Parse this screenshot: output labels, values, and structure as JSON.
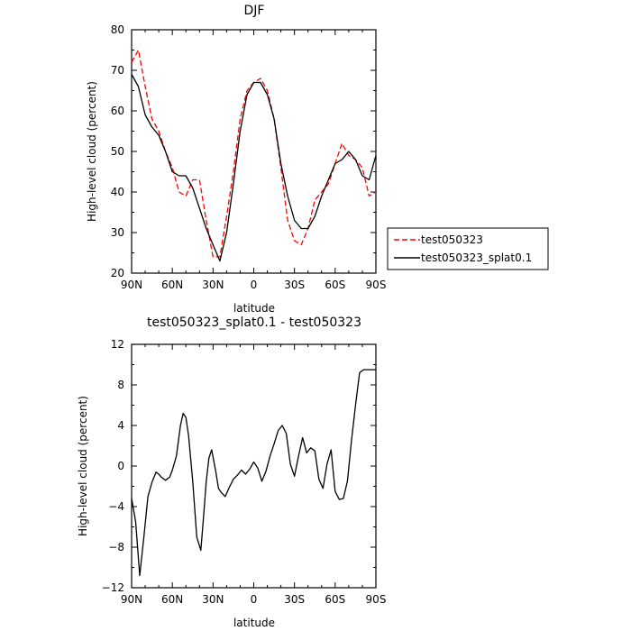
{
  "chart_data": [
    {
      "type": "line",
      "title": "DJF",
      "xlabel": "latitude",
      "ylabel": "High-level cloud (percent)",
      "xlim": [
        90,
        -90
      ],
      "ylim": [
        20,
        80
      ],
      "x_tick_values": [
        90,
        60,
        30,
        0,
        -30,
        -60,
        -90
      ],
      "x_tick_labels": [
        "90N",
        "60N",
        "30N",
        "0",
        "30S",
        "60S",
        "90S"
      ],
      "y_tick_values": [
        20,
        30,
        40,
        50,
        60,
        70,
        80
      ],
      "y_tick_labels": [
        "20",
        "30",
        "40",
        "50",
        "60",
        "70",
        "80"
      ],
      "legend": "right",
      "series": [
        {
          "name": "test050323",
          "color": "#ff0000",
          "dash": "dashed",
          "x": [
            90,
            85,
            80,
            75,
            70,
            65,
            60,
            55,
            50,
            45,
            40,
            35,
            30,
            25,
            20,
            15,
            10,
            5,
            0,
            -5,
            -10,
            -15,
            -20,
            -25,
            -30,
            -35,
            -40,
            -45,
            -50,
            -55,
            -60,
            -65,
            -70,
            -75,
            -80,
            -85,
            -90
          ],
          "y": [
            72,
            75,
            66,
            58,
            55,
            50,
            46,
            40,
            39,
            43,
            43,
            33,
            24,
            24,
            34,
            45,
            58,
            65,
            67,
            68,
            65,
            58,
            46,
            33,
            28,
            27,
            31,
            38,
            40,
            42,
            47,
            52,
            49,
            48,
            46,
            39,
            40
          ]
        },
        {
          "name": "test050323_splat0.1",
          "color": "#000000",
          "dash": "solid",
          "x": [
            90,
            85,
            80,
            75,
            70,
            65,
            60,
            55,
            50,
            45,
            40,
            35,
            30,
            25,
            20,
            15,
            10,
            5,
            0,
            -5,
            -10,
            -15,
            -20,
            -25,
            -30,
            -35,
            -40,
            -45,
            -50,
            -55,
            -60,
            -65,
            -70,
            -75,
            -80,
            -85,
            -90
          ],
          "y": [
            69,
            66,
            59,
            56,
            54,
            50,
            45,
            44,
            44,
            41,
            36,
            31,
            27,
            23,
            30,
            42,
            55,
            64,
            67,
            67,
            64,
            58,
            47,
            39,
            33,
            31,
            31,
            34,
            39,
            43,
            47,
            48,
            50,
            48,
            44,
            43,
            49
          ]
        }
      ]
    },
    {
      "type": "line",
      "title": "test050323_splat0.1 - test050323",
      "xlabel": "latitude",
      "ylabel": "High-level cloud (percent)",
      "xlim": [
        90,
        -90
      ],
      "ylim": [
        -12,
        12
      ],
      "x_tick_values": [
        90,
        60,
        30,
        0,
        -30,
        -60,
        -90
      ],
      "x_tick_labels": [
        "90N",
        "60N",
        "30N",
        "0",
        "30S",
        "60S",
        "90S"
      ],
      "y_tick_values": [
        -12,
        -8,
        -4,
        0,
        4,
        8,
        12
      ],
      "y_tick_labels": [
        "−12",
        "−8",
        "−4",
        "0",
        "4",
        "8",
        "12"
      ],
      "series": [
        {
          "color": "#000000",
          "dash": "solid",
          "x": [
            90,
            87,
            84,
            81,
            78,
            75,
            72,
            70,
            68,
            65,
            62,
            60,
            57,
            54,
            52,
            50,
            48,
            45,
            42,
            39,
            37,
            35,
            33,
            31,
            28,
            26,
            24,
            21,
            18,
            15,
            12,
            9,
            6,
            3,
            0,
            -3,
            -6,
            -9,
            -12,
            -15,
            -18,
            -21,
            -24,
            -27,
            -30,
            -33,
            -36,
            -39,
            -42,
            -45,
            -48,
            -51,
            -54,
            -57,
            -60,
            -63,
            -66,
            -69,
            -72,
            -75,
            -78,
            -81,
            -84,
            -87,
            -90
          ],
          "y": [
            -3.2,
            -5.5,
            -10.8,
            -7,
            -3,
            -1.6,
            -0.6,
            -0.8,
            -1.1,
            -1.4,
            -1.1,
            -0.4,
            1,
            4,
            5.2,
            4.8,
            3,
            -1.5,
            -7,
            -8.3,
            -5,
            -1.5,
            0.8,
            1.6,
            -0.5,
            -2.2,
            -2.6,
            -3,
            -2.1,
            -1.3,
            -0.9,
            -0.4,
            -0.8,
            -0.3,
            0.4,
            -0.2,
            -1.5,
            -0.5,
            1,
            2.2,
            3.5,
            4,
            3.2,
            0.2,
            -1,
            1,
            2.8,
            1.3,
            1.8,
            1.5,
            -1.3,
            -2.2,
            0.2,
            1.6,
            -2.5,
            -3.3,
            -3.2,
            -1.5,
            2.5,
            6,
            9.2,
            9.5,
            9.5,
            9.5,
            9.5
          ]
        }
      ]
    }
  ]
}
